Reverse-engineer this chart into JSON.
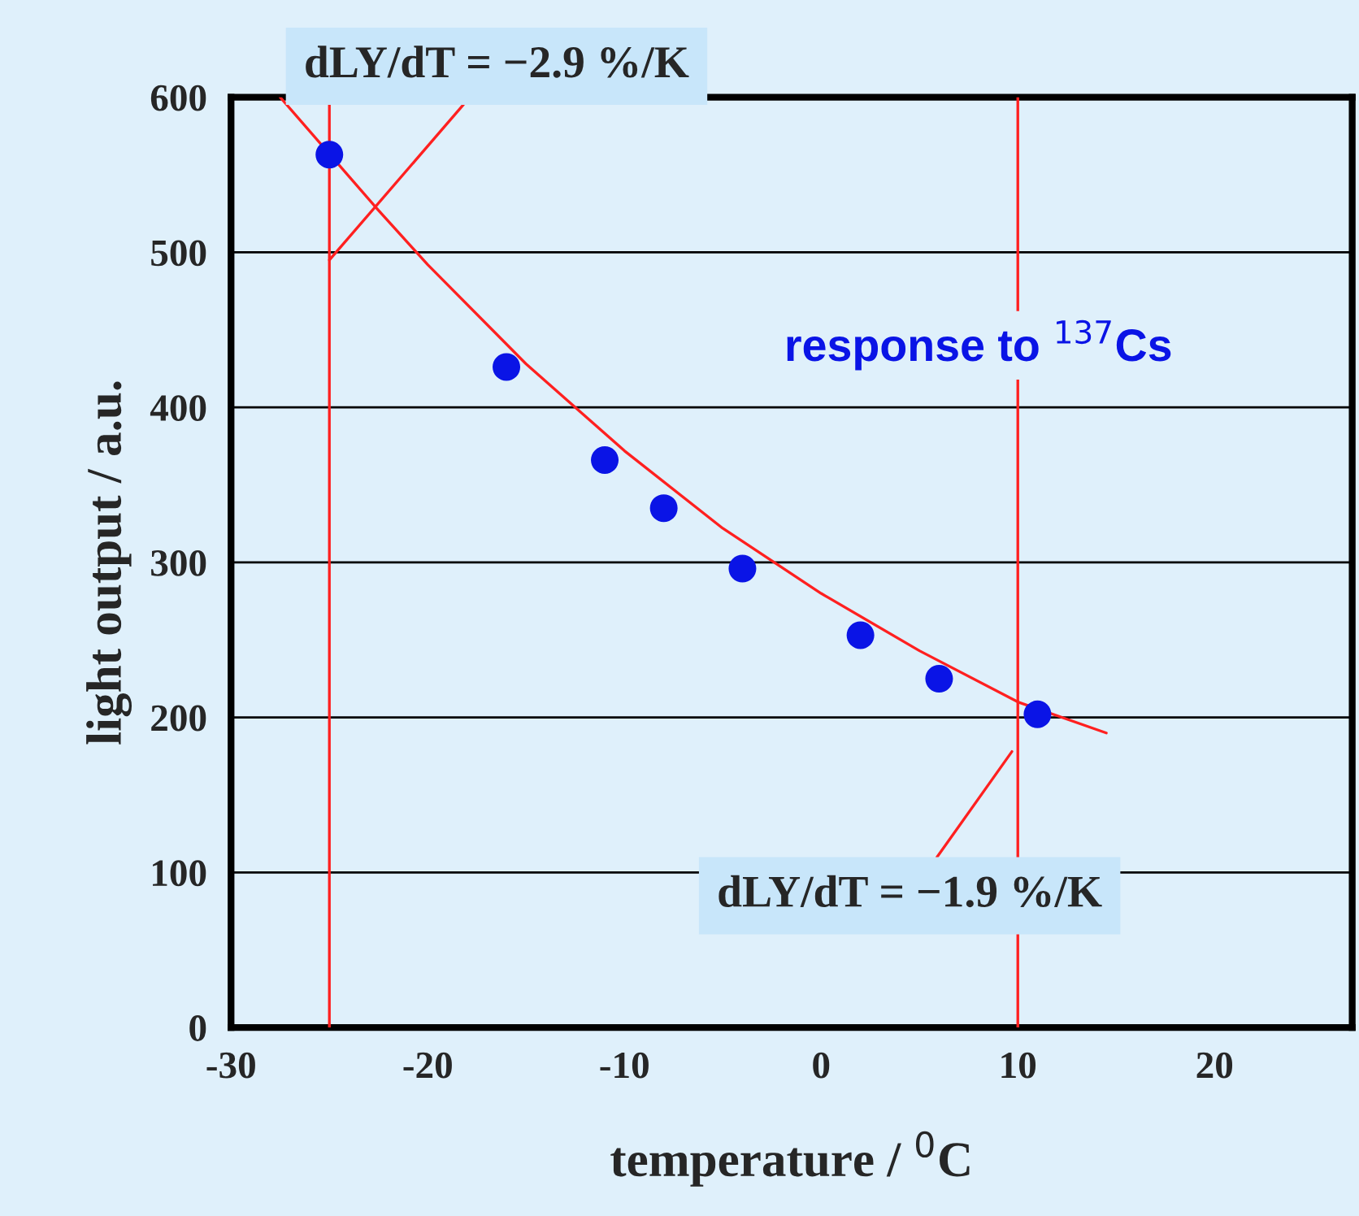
{
  "chart_data": {
    "type": "scatter",
    "xlabel": "temperature / $^{0}$C",
    "ylabel": "light output / a.u.",
    "x": [
      -25,
      -16,
      -11,
      -8,
      -4,
      2,
      6,
      11
    ],
    "series": [
      {
        "color": "#0a14e6",
        "marker": "circle",
        "values": [
          563,
          426,
          366,
          335,
          296,
          253,
          225,
          202
        ]
      },
      {
        "type": "line",
        "marker": "none",
        "color": "#ff2020",
        "x": [
          -27.5,
          -22.5,
          -20,
          -15,
          -10,
          -5,
          0,
          5,
          10,
          14.5
        ],
        "values": [
          600,
          527,
          492,
          428,
          372,
          322,
          280,
          243,
          210,
          190
        ]
      }
    ],
    "ref_lines": [
      {
        "axis": "x",
        "value": -25,
        "color": "#ff2020"
      },
      {
        "axis": "x",
        "value": 10,
        "color": "#ff2020"
      }
    ],
    "annotations": [
      {
        "text": "dLY/dT = −2.9 %/K",
        "x": -25,
        "y": 495
      },
      {
        "text": "dLY/dT = −1.9 %/K",
        "x": 9.7,
        "y": 178
      },
      "response to $^{137}$Cs"
    ],
    "xlim": [
      -30,
      27
    ],
    "ylim": [
      0,
      600
    ],
    "xticks": [
      -30,
      -20,
      -10,
      0,
      10,
      20
    ],
    "yticks": [
      0,
      100,
      200,
      300,
      400,
      500,
      600
    ],
    "grid": "y",
    "line_style": "solid"
  }
}
